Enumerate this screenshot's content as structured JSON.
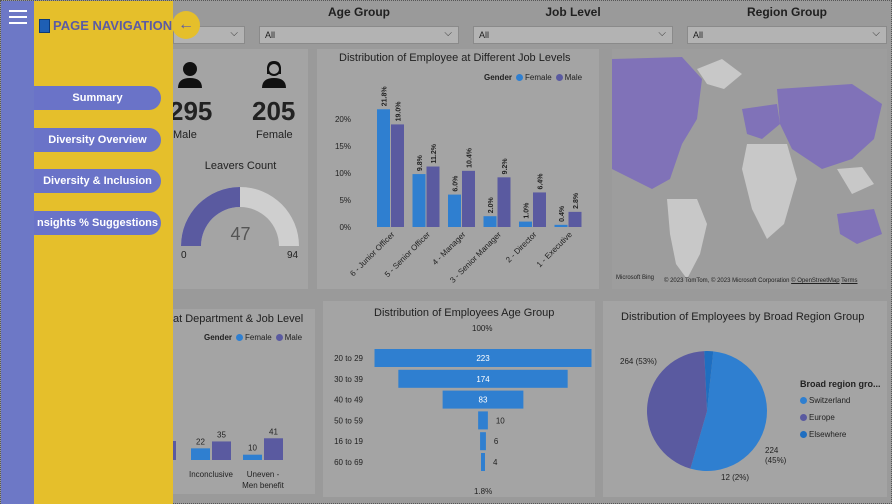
{
  "nav": {
    "title": "PAGE NAVIGATION",
    "buttons": [
      "Summary",
      "Diversity Overview",
      "Diversity & Inclusion",
      "nsights % Suggestions"
    ]
  },
  "filters": [
    {
      "label": "",
      "value": ""
    },
    {
      "label": "Age Group",
      "value": "All"
    },
    {
      "label": "Job Level",
      "value": "All"
    },
    {
      "label": "Region Group",
      "value": "All"
    }
  ],
  "kpi": {
    "male_count": "295",
    "male_label": "Male",
    "female_count": "205",
    "female_label": "Female",
    "leavers_title": "Leavers Count",
    "leavers_value": "47",
    "leavers_min": "0",
    "leavers_max": "94",
    "leavers_fraction": 0.5
  },
  "colors": {
    "female": "#2f7fd0",
    "male": "#5a5aa0",
    "map_land": "#c8c8c8",
    "map_highlight": "#8072b8"
  },
  "job_chart": {
    "title": "Distribution of Employee at Different Job Levels",
    "legend_title": "Gender",
    "legend": [
      "Female",
      "Male"
    ],
    "footer": "© 2023 TomTom, © 2023 Microsoft Corporation",
    "footer_link": "© OpenStreetMap",
    "footer_terms": "Terms",
    "logo": "Microsoft Bing"
  },
  "dept_chart": {
    "title": "at Department & Job Level",
    "legend_title": "Gender",
    "legend": [
      "Female",
      "Male"
    ]
  },
  "age_chart": {
    "title": "Distribution of Employees Age Group",
    "top_label": "100%",
    "bottom_label": "1.8%"
  },
  "region_chart": {
    "title": "Distribution of Employees by Broad Region Group",
    "legend_title": "Broad region gro...",
    "legend": [
      "Switzerland",
      "Europe",
      "Elsewhere"
    ],
    "labels": [
      "264 (53%)",
      "224",
      "(45%)",
      "12 (2%)"
    ]
  },
  "chart_data": [
    {
      "type": "bar",
      "title": "Distribution of Employee at Different Job Levels",
      "categories": [
        "6 - Junior Officer",
        "5 - Senior Officer",
        "4 - Manager",
        "3 - Senior Manager",
        "2 - Director",
        "1 - Executive"
      ],
      "series": [
        {
          "name": "Female",
          "values": [
            21.8,
            9.8,
            6.0,
            2.0,
            1.0,
            0.4
          ],
          "labels": [
            "21.8%",
            "9.8%",
            "6.0%",
            "2.0%",
            "1.0%",
            "0.4%"
          ]
        },
        {
          "name": "Male",
          "values": [
            19.0,
            11.2,
            10.4,
            9.2,
            6.4,
            2.8
          ],
          "labels": [
            "19.0%",
            "11.2%",
            "10.4%",
            "9.2%",
            "6.4%",
            "2.8%"
          ]
        }
      ],
      "yticks": [
        "0%",
        "5%",
        "10%",
        "15%",
        "20%"
      ],
      "ylim": [
        0,
        25
      ]
    },
    {
      "type": "bar",
      "title": "at Department & Job Level",
      "categories": [
        "Inconclusive",
        "Uneven - Men benefit"
      ],
      "category_lines": [
        [
          "Inconclusive"
        ],
        [
          "Uneven -",
          "Men benefit"
        ]
      ],
      "series": [
        {
          "name": "Female",
          "values": [
            22,
            10
          ]
        },
        {
          "name": "Male",
          "values": [
            35,
            41
          ]
        }
      ]
    },
    {
      "type": "bar",
      "title": "Distribution of Employees Age Group",
      "categories": [
        "20 to 29",
        "30 to 39",
        "40 to 49",
        "50 to 59",
        "16 to 19",
        "60 to 69"
      ],
      "values": [
        223,
        174,
        83,
        10,
        6,
        4
      ]
    },
    {
      "type": "pie",
      "title": "Distribution of Employees by Broad Region Group",
      "categories": [
        "Switzerland",
        "Europe",
        "Elsewhere"
      ],
      "values": [
        264,
        224,
        12
      ]
    }
  ]
}
